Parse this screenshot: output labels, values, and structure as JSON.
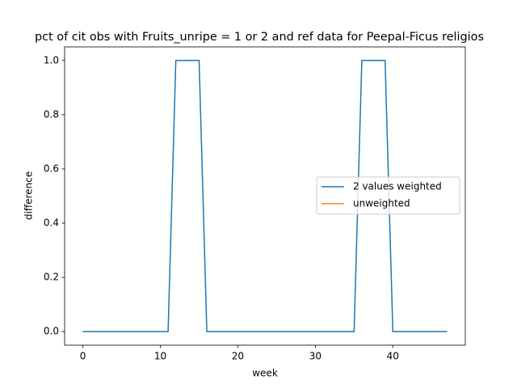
{
  "chart_data": {
    "type": "line",
    "title": "pct of cit obs with Fruits_unripe = 1 or 2 and ref data for Peepal-Ficus religios",
    "xlabel": "week",
    "ylabel": "difference",
    "x": [
      0,
      1,
      2,
      3,
      4,
      5,
      6,
      7,
      8,
      9,
      10,
      11,
      12,
      13,
      14,
      15,
      16,
      17,
      18,
      19,
      20,
      21,
      22,
      23,
      24,
      25,
      26,
      27,
      28,
      29,
      30,
      31,
      32,
      33,
      34,
      35,
      36,
      37,
      38,
      39,
      40,
      41,
      42,
      43,
      44,
      45,
      46,
      47
    ],
    "series": [
      {
        "name": "2 values weighted",
        "color": "#1f77b4",
        "values": [
          0,
          0,
          0,
          0,
          0,
          0,
          0,
          0,
          0,
          0,
          0,
          0,
          1,
          1,
          1,
          1,
          0,
          0,
          0,
          0,
          0,
          0,
          0,
          0,
          0,
          0,
          0,
          0,
          0,
          0,
          0,
          0,
          0,
          0,
          0,
          0,
          1,
          1,
          1,
          1,
          0,
          0,
          0,
          0,
          0,
          0,
          0,
          0
        ]
      },
      {
        "name": "unweighted",
        "color": "#ff7f0e",
        "values": [
          null,
          null,
          null,
          null,
          null,
          null,
          null,
          null,
          null,
          null,
          null,
          null,
          null,
          null,
          null,
          null,
          null,
          null,
          null,
          null,
          null,
          null,
          null,
          null,
          null,
          null,
          null,
          null,
          null,
          null,
          null,
          null,
          null,
          null,
          null,
          null,
          null,
          null,
          null,
          null,
          null,
          null,
          null,
          null,
          null,
          null,
          null,
          null
        ]
      }
    ],
    "xlim": [
      -2.35,
      49.35
    ],
    "xticks": [
      0,
      10,
      20,
      30,
      40
    ],
    "ylim": [
      -0.05,
      1.05
    ],
    "yticks": [
      {
        "value": 0,
        "label": "0.0"
      },
      {
        "value": 0.2,
        "label": "0.2"
      },
      {
        "value": 0.4,
        "label": "0.4"
      },
      {
        "value": 0.6,
        "label": "0.6"
      },
      {
        "value": 0.8,
        "label": "0.8"
      },
      {
        "value": 1,
        "label": "1.0"
      }
    ],
    "legend": "center right"
  }
}
